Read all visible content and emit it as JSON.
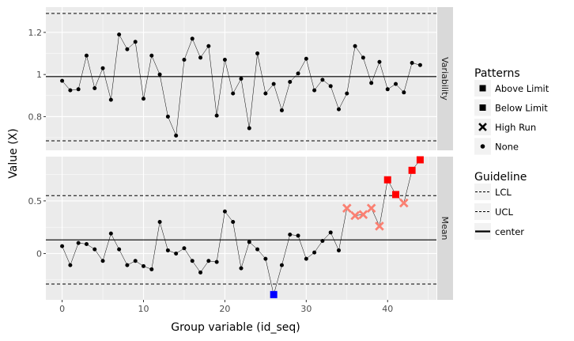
{
  "chart_data": {
    "type": "scatter",
    "xlabel": "Group variable (id_seq)",
    "ylabel": "Value (X)",
    "xlim": [
      -2,
      46
    ],
    "x_ticks": [
      0,
      10,
      20,
      30,
      40
    ],
    "grid": true,
    "facets": [
      {
        "strip_label": "Variability",
        "ylim": [
          0.64,
          1.32
        ],
        "y_ticks": [
          0.8,
          1.0,
          1.2
        ],
        "y_tick_labels": [
          "0.8",
          "1",
          "1.2"
        ],
        "center": 0.99,
        "ucl": 1.29,
        "lcl": 0.685,
        "x": [
          0,
          1,
          2,
          3,
          4,
          5,
          6,
          7,
          8,
          9,
          10,
          11,
          12,
          13,
          14,
          15,
          16,
          17,
          18,
          19,
          20,
          21,
          22,
          23,
          24,
          25,
          26,
          27,
          28,
          29,
          30,
          31,
          32,
          33,
          34,
          35,
          36,
          37,
          38,
          39,
          40,
          41,
          42,
          43,
          44
        ],
        "values": [
          0.97,
          0.925,
          0.93,
          1.09,
          0.935,
          1.03,
          0.88,
          1.19,
          1.12,
          1.155,
          0.885,
          1.09,
          1.0,
          0.8,
          0.71,
          1.07,
          1.17,
          1.08,
          1.135,
          0.805,
          1.07,
          0.91,
          0.98,
          0.745,
          1.1,
          0.91,
          0.955,
          0.83,
          0.965,
          1.005,
          1.075,
          0.925,
          0.975,
          0.945,
          0.835,
          0.91,
          1.135,
          1.08,
          0.96,
          1.06,
          0.93,
          0.955,
          0.915,
          1.055,
          1.045
        ],
        "patterns": [
          "None",
          "None",
          "None",
          "None",
          "None",
          "None",
          "None",
          "None",
          "None",
          "None",
          "None",
          "None",
          "None",
          "None",
          "None",
          "None",
          "None",
          "None",
          "None",
          "None",
          "None",
          "None",
          "None",
          "None",
          "None",
          "None",
          "None",
          "None",
          "None",
          "None",
          "None",
          "None",
          "None",
          "None",
          "None",
          "None",
          "None",
          "None",
          "None",
          "None",
          "None",
          "None",
          "None",
          "None",
          "None"
        ]
      },
      {
        "strip_label": "Mean",
        "ylim": [
          -0.44,
          0.92
        ],
        "y_ticks": [
          0.0,
          0.5
        ],
        "y_tick_labels": [
          "0",
          "0.5"
        ],
        "center": 0.13,
        "ucl": 0.55,
        "lcl": -0.29,
        "x": [
          0,
          1,
          2,
          3,
          4,
          5,
          6,
          7,
          8,
          9,
          10,
          11,
          12,
          13,
          14,
          15,
          16,
          17,
          18,
          19,
          20,
          21,
          22,
          23,
          24,
          25,
          26,
          27,
          28,
          29,
          30,
          31,
          32,
          33,
          34,
          35,
          36,
          37,
          38,
          39,
          40,
          41,
          42,
          43,
          44
        ],
        "values": [
          0.07,
          -0.11,
          0.1,
          0.09,
          0.04,
          -0.07,
          0.19,
          0.04,
          -0.11,
          -0.07,
          -0.12,
          -0.15,
          0.3,
          0.03,
          0.0,
          0.05,
          -0.07,
          -0.18,
          -0.07,
          -0.08,
          0.4,
          0.3,
          -0.14,
          0.11,
          0.04,
          -0.05,
          -0.39,
          -0.11,
          0.18,
          0.17,
          -0.05,
          0.01,
          0.12,
          0.2,
          0.03,
          0.43,
          0.36,
          0.37,
          0.43,
          0.26,
          0.7,
          0.56,
          0.48,
          0.79,
          0.89
        ],
        "patterns": [
          "None",
          "None",
          "None",
          "None",
          "None",
          "None",
          "None",
          "None",
          "None",
          "None",
          "None",
          "None",
          "None",
          "None",
          "None",
          "None",
          "None",
          "None",
          "None",
          "None",
          "None",
          "None",
          "None",
          "None",
          "None",
          "None",
          "Below Limit",
          "None",
          "None",
          "None",
          "None",
          "None",
          "None",
          "None",
          "None",
          "High Run",
          "High Run",
          "High Run",
          "High Run",
          "High Run",
          "Above Limit",
          "Above Limit",
          "High Run",
          "Above Limit",
          "Above Limit"
        ]
      }
    ],
    "legend_position": "right",
    "legend": {
      "patterns_title": "Patterns",
      "patterns": [
        {
          "label": "Above Limit",
          "shape": "square",
          "color": "#ff0000"
        },
        {
          "label": "Below Limit",
          "shape": "square",
          "color": "#0000ff"
        },
        {
          "label": "High Run",
          "shape": "cross",
          "color": "#fa8072"
        },
        {
          "label": "None",
          "shape": "dot",
          "color": "#000000"
        }
      ],
      "guideline_title": "Guideline",
      "guidelines": [
        {
          "label": "LCL",
          "style": "dashed"
        },
        {
          "label": "UCL",
          "style": "dashed"
        },
        {
          "label": "center",
          "style": "solid"
        }
      ]
    }
  }
}
